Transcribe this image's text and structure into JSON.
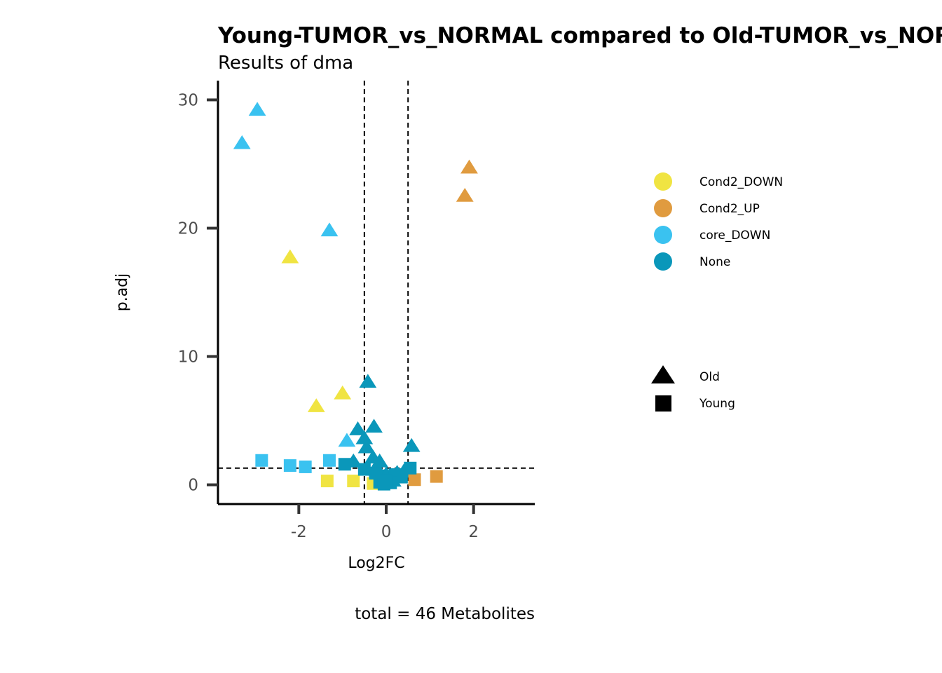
{
  "chart_data": {
    "type": "scatter",
    "title": "Young-TUMOR_vs_NORMAL compared to Old-TUMOR_vs_NORMAL",
    "subtitle": "Results of dma",
    "xlabel": "Log2FC",
    "ylabel": "p.adj",
    "caption": "total = 46 Metabolites",
    "xlim": [
      -3.85,
      3.4
    ],
    "ylim": [
      -1.5,
      31.5
    ],
    "xticks": [
      -2,
      0,
      2
    ],
    "yticks": [
      0,
      10,
      20,
      30
    ],
    "xtick_labels": [
      "-2",
      "0",
      "2"
    ],
    "ytick_labels": [
      "0",
      "10",
      "20",
      "30"
    ],
    "grid": false,
    "legend_position": "right",
    "thresholds": {
      "x": [
        -0.5,
        0.5
      ],
      "y": 1.3
    },
    "color_legend": [
      {
        "name": "Cond2_DOWN",
        "color": "#F0E442"
      },
      {
        "name": "Cond2_UP",
        "color": "#E09B3F"
      },
      {
        "name": "core_DOWN",
        "color": "#3AC2F0"
      },
      {
        "name": "None",
        "color": "#0A97BA"
      }
    ],
    "shape_legend": [
      {
        "name": "Old",
        "shape": "triangle"
      },
      {
        "name": "Young",
        "shape": "square"
      }
    ],
    "series": [
      {
        "group": "Old",
        "points": [
          {
            "x": -2.95,
            "y": 29.2,
            "class": "core_DOWN"
          },
          {
            "x": -3.3,
            "y": 26.6,
            "class": "core_DOWN"
          },
          {
            "x": -1.3,
            "y": 19.8,
            "class": "core_DOWN"
          },
          {
            "x": -0.9,
            "y": 3.4,
            "class": "core_DOWN"
          },
          {
            "x": -2.2,
            "y": 17.7,
            "class": "Cond2_DOWN"
          },
          {
            "x": -1.0,
            "y": 7.1,
            "class": "Cond2_DOWN"
          },
          {
            "x": -1.6,
            "y": 6.1,
            "class": "Cond2_DOWN"
          },
          {
            "x": 1.9,
            "y": 24.7,
            "class": "Cond2_UP"
          },
          {
            "x": 1.8,
            "y": 22.5,
            "class": "Cond2_UP"
          },
          {
            "x": -0.42,
            "y": 8.0,
            "class": "None"
          },
          {
            "x": -0.65,
            "y": 4.3,
            "class": "None"
          },
          {
            "x": -0.28,
            "y": 4.5,
            "class": "None"
          },
          {
            "x": -0.5,
            "y": 3.6,
            "class": "None"
          },
          {
            "x": -0.45,
            "y": 2.9,
            "class": "None"
          },
          {
            "x": 0.58,
            "y": 3.0,
            "class": "None"
          },
          {
            "x": -0.75,
            "y": 1.8,
            "class": "None"
          },
          {
            "x": -0.3,
            "y": 2.1,
            "class": "None"
          },
          {
            "x": -0.15,
            "y": 1.8,
            "class": "None"
          },
          {
            "x": -0.2,
            "y": 1.2,
            "class": "None"
          },
          {
            "x": 0.0,
            "y": 0.8,
            "class": "None"
          },
          {
            "x": 0.1,
            "y": 0.5,
            "class": "None"
          },
          {
            "x": 0.25,
            "y": 0.9,
            "class": "None"
          },
          {
            "x": 0.4,
            "y": 1.0,
            "class": "None"
          },
          {
            "x": -0.1,
            "y": 0.4,
            "class": "None"
          },
          {
            "x": 0.15,
            "y": 0.3,
            "class": "None"
          }
        ]
      },
      {
        "group": "Young",
        "points": [
          {
            "x": -2.85,
            "y": 1.9,
            "class": "core_DOWN"
          },
          {
            "x": -2.2,
            "y": 1.5,
            "class": "core_DOWN"
          },
          {
            "x": -1.85,
            "y": 1.4,
            "class": "core_DOWN"
          },
          {
            "x": -1.3,
            "y": 1.9,
            "class": "core_DOWN"
          },
          {
            "x": -1.35,
            "y": 0.3,
            "class": "Cond2_DOWN"
          },
          {
            "x": -0.75,
            "y": 0.3,
            "class": "Cond2_DOWN"
          },
          {
            "x": -0.3,
            "y": 0.1,
            "class": "Cond2_DOWN"
          },
          {
            "x": 1.15,
            "y": 0.65,
            "class": "Cond2_UP"
          },
          {
            "x": 0.65,
            "y": 0.4,
            "class": "Cond2_UP"
          },
          {
            "x": -0.95,
            "y": 1.6,
            "class": "None"
          },
          {
            "x": 0.55,
            "y": 1.3,
            "class": "None"
          },
          {
            "x": -0.5,
            "y": 1.2,
            "class": "None"
          },
          {
            "x": -0.25,
            "y": 0.9,
            "class": "None"
          },
          {
            "x": -0.1,
            "y": 0.7,
            "class": "None"
          },
          {
            "x": 0.05,
            "y": 0.5,
            "class": "None"
          },
          {
            "x": 0.2,
            "y": 0.8,
            "class": "None"
          },
          {
            "x": 0.35,
            "y": 0.6,
            "class": "None"
          },
          {
            "x": -0.15,
            "y": 0.2,
            "class": "None"
          },
          {
            "x": 0.1,
            "y": 0.15,
            "class": "None"
          },
          {
            "x": -0.05,
            "y": 0.05,
            "class": "None"
          },
          {
            "x": 0.0,
            "y": 0.35,
            "class": "None"
          }
        ]
      }
    ]
  }
}
